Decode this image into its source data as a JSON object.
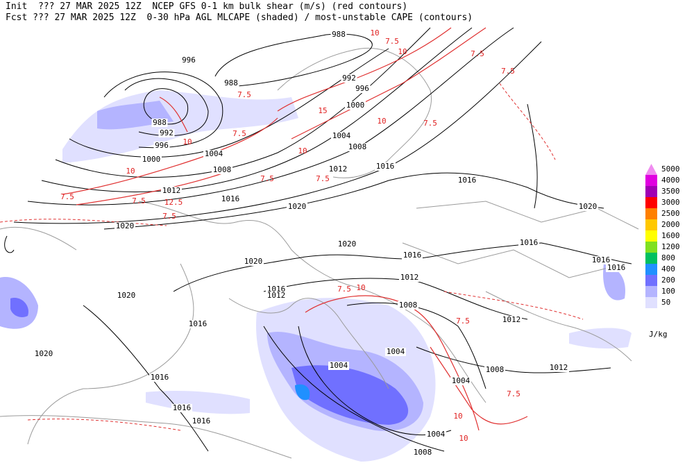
{
  "header": {
    "line1": "Init  ??? 27 MAR 2025 12Z  NCEP GFS 0-1 km bulk shear (m/s) (red contours)",
    "line2": "Fcst ??? 27 MAR 2025 12Z  0-30 hPa AGL MLCAPE (shaded) / most-unstable CAPE (contours)"
  },
  "legend": {
    "items": [
      {
        "label": "5000",
        "color": "#f08cf0"
      },
      {
        "label": "4000",
        "color": "#e000e0"
      },
      {
        "label": "3500",
        "color": "#a000b4"
      },
      {
        "label": "3000",
        "color": "#ff0000"
      },
      {
        "label": "2500",
        "color": "#ff8000"
      },
      {
        "label": "2000",
        "color": "#ffc800"
      },
      {
        "label": "1600",
        "color": "#ffff00"
      },
      {
        "label": "1200",
        "color": "#80e020"
      },
      {
        "label": "800",
        "color": "#00c060"
      },
      {
        "label": "400",
        "color": "#2090ff"
      },
      {
        "label": "200",
        "color": "#7070ff"
      },
      {
        "label": "100",
        "color": "#b4b4ff"
      },
      {
        "label": "50",
        "color": "#e0e0ff"
      }
    ],
    "unit": "J/kg"
  },
  "isobar_labels": [
    "988",
    "996",
    "988",
    "992",
    "996",
    "988",
    "992",
    "996",
    "1000",
    "1004",
    "1008",
    "1000",
    "1004",
    "1008",
    "1012",
    "1016",
    "1016",
    "1012",
    "1016",
    "1020",
    "1020",
    "1020",
    "1020",
    "1020",
    "1016",
    "1016",
    "1016",
    "1016",
    "1012",
    "1016",
    "1012",
    "1020",
    "1008",
    "1012",
    "1016",
    "1020",
    "1004",
    "1004",
    "1008",
    "1012",
    "1004",
    "1016",
    "1016",
    "1016",
    "1004",
    "1008"
  ],
  "shear_labels": [
    "7.5",
    "7.5",
    "10",
    "10",
    "7.5",
    "7.5",
    "12.5",
    "7.5",
    "15",
    "10",
    "7.5",
    "7.5",
    "10",
    "7.5",
    "10",
    "7.5",
    "7.5",
    "7.5",
    "10",
    "7.5",
    "7.5",
    "10",
    "10",
    "10",
    "7.5"
  ]
}
